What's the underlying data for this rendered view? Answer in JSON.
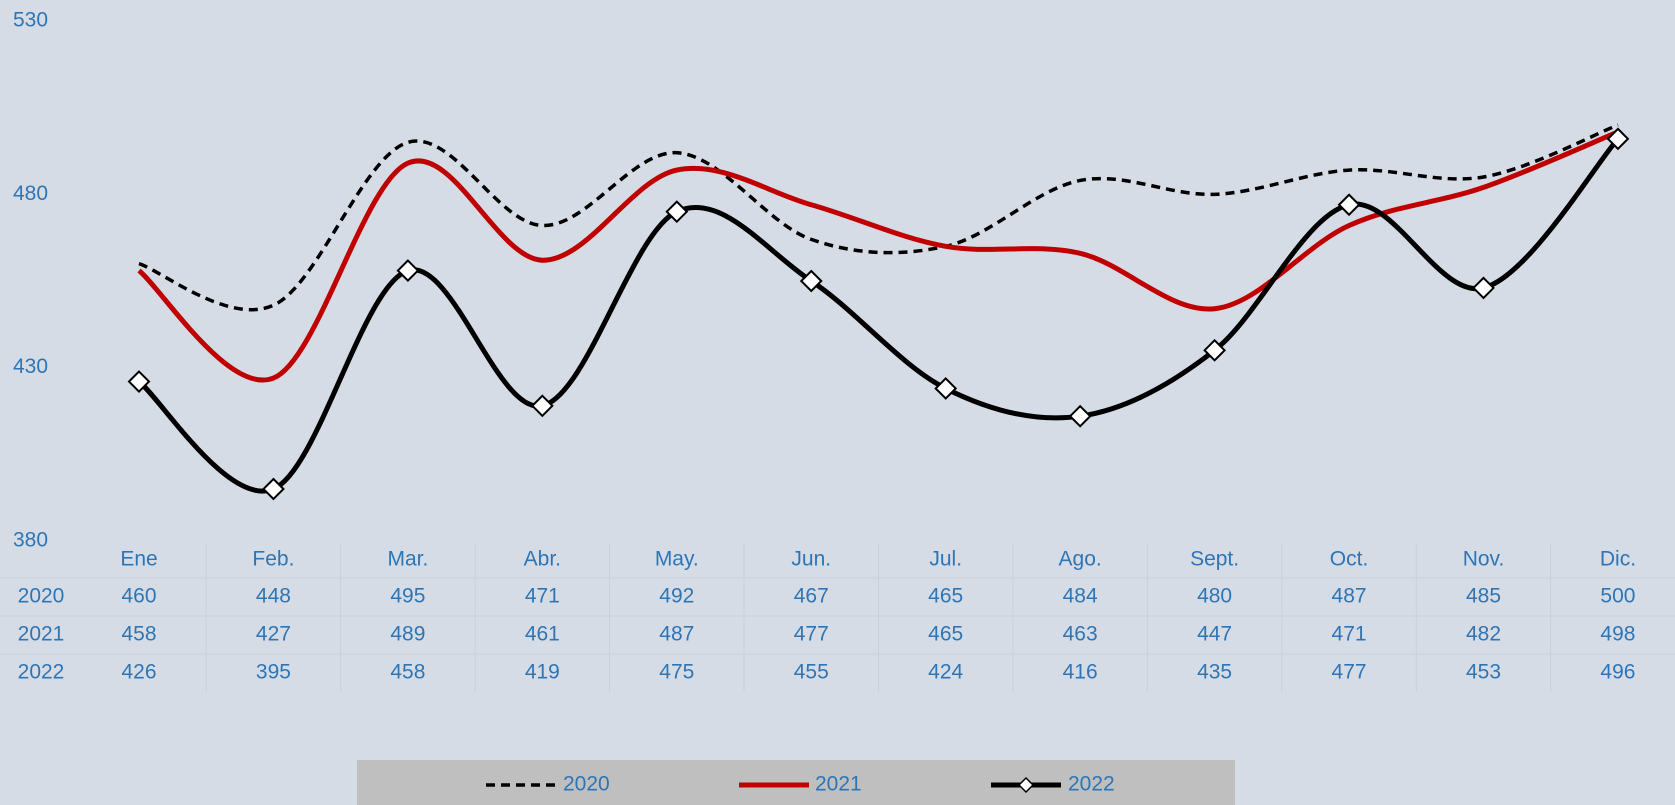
{
  "chart_data": {
    "type": "line",
    "categories": [
      "Ene",
      "Feb.",
      "Mar.",
      "Abr.",
      "May.",
      "Jun.",
      "Jul.",
      "Ago.",
      "Sept.",
      "Oct.",
      "Nov.",
      "Dic."
    ],
    "series": [
      {
        "name": "2020",
        "color": "#000000",
        "style": "dashed",
        "values": [
          460,
          448,
          495,
          471,
          492,
          467,
          465,
          484,
          480,
          487,
          485,
          500
        ]
      },
      {
        "name": "2021",
        "color": "#c00000",
        "style": "solid",
        "values": [
          458,
          427,
          489,
          461,
          487,
          477,
          465,
          463,
          447,
          471,
          482,
          498
        ]
      },
      {
        "name": "2022",
        "color": "#000000",
        "style": "solid",
        "marker": "diamond",
        "values": [
          426,
          395,
          458,
          419,
          475,
          455,
          424,
          416,
          435,
          477,
          453,
          496
        ]
      }
    ],
    "ylim": [
      380,
      530
    ],
    "yticks": [
      380,
      430,
      480,
      530
    ],
    "grid": false,
    "smooth": true,
    "data_table": true,
    "legend": "bottom"
  }
}
